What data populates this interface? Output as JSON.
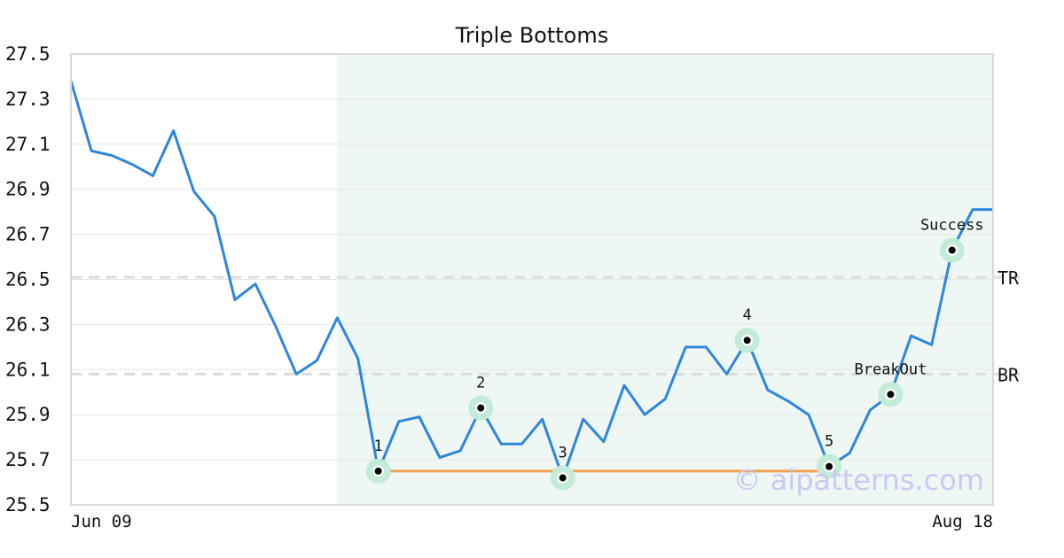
{
  "chart_data": {
    "type": "line",
    "title": "Triple Bottoms",
    "watermark": "© aipatterns.com",
    "xlabel": "",
    "ylabel": "",
    "x_tick_labels": [
      "Jun 09",
      "Aug 18"
    ],
    "ylim": [
      25.5,
      27.5
    ],
    "y_ticks": [
      "25.5",
      "25.7",
      "25.9",
      "26.1",
      "26.3",
      "26.5",
      "26.7",
      "26.9",
      "27.1",
      "27.3",
      "27.5"
    ],
    "grid": true,
    "series": [
      {
        "color": "#2e86de",
        "values": [
          27.38,
          27.07,
          27.05,
          27.01,
          26.96,
          27.16,
          26.89,
          26.78,
          26.41,
          26.48,
          26.29,
          26.08,
          26.14,
          26.33,
          26.15,
          25.65,
          25.87,
          25.89,
          25.71,
          25.74,
          25.93,
          25.77,
          25.77,
          25.88,
          25.62,
          25.88,
          25.78,
          26.03,
          25.9,
          25.97,
          26.2,
          26.2,
          26.08,
          26.23,
          26.01,
          25.96,
          25.9,
          25.67,
          25.73,
          25.92,
          25.99,
          26.25,
          26.21,
          26.63,
          26.81,
          26.81
        ]
      }
    ],
    "pattern_region": {
      "start_index": 13,
      "end_index": 45,
      "color": "#eef7f3"
    },
    "levels": [
      {
        "label": "TR",
        "value": 26.51
      },
      {
        "label": "BR",
        "value": 26.08
      }
    ],
    "support_line": {
      "value": 25.65,
      "start_index": 15,
      "end_index": 37,
      "color": "#f0a050"
    },
    "markers": [
      {
        "label": "1",
        "index": 15,
        "value": 25.65
      },
      {
        "label": "2",
        "index": 20,
        "value": 25.93
      },
      {
        "label": "3",
        "index": 24,
        "value": 25.62
      },
      {
        "label": "4",
        "index": 33,
        "value": 26.23
      },
      {
        "label": "5",
        "index": 37,
        "value": 25.67
      },
      {
        "label": "BreakOut",
        "index": 40,
        "value": 25.99
      },
      {
        "label": "Success",
        "index": 43,
        "value": 26.63
      }
    ]
  }
}
